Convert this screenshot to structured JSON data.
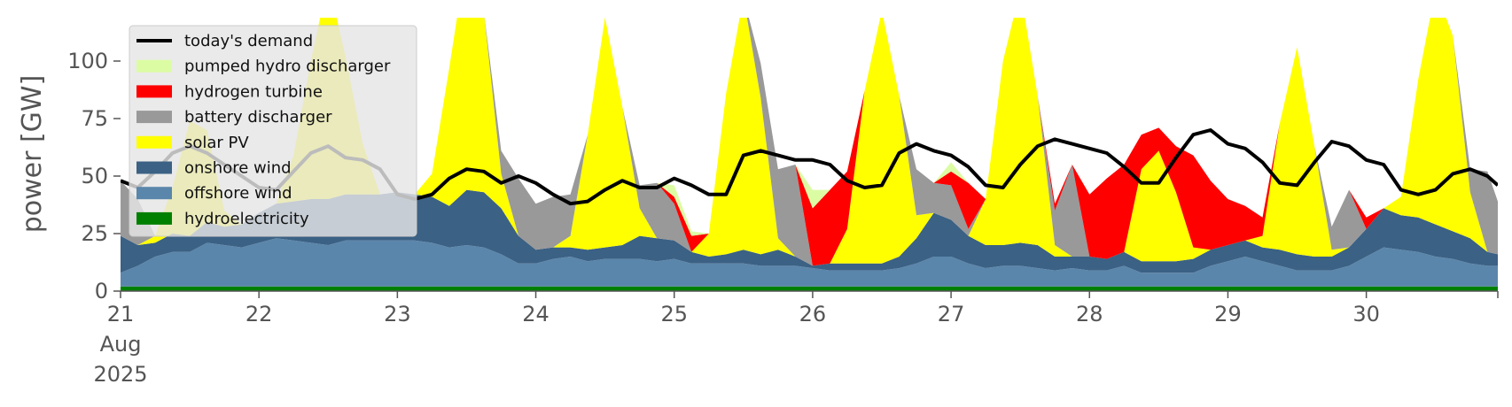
{
  "chart_data": {
    "type": "area",
    "title": "",
    "ylabel": "power [GW]",
    "xlabel": "",
    "ylim": [
      0,
      120
    ],
    "xlim_days": [
      21,
      30.95
    ],
    "yticks": [
      0,
      25,
      50,
      75,
      100
    ],
    "xticks": [
      {
        "day": 21,
        "lines": [
          "21",
          "Aug",
          "2025"
        ]
      },
      {
        "day": 22,
        "lines": [
          "22"
        ]
      },
      {
        "day": 23,
        "lines": [
          "23"
        ]
      },
      {
        "day": 24,
        "lines": [
          "24"
        ]
      },
      {
        "day": 25,
        "lines": [
          "25"
        ]
      },
      {
        "day": 26,
        "lines": [
          "26"
        ]
      },
      {
        "day": 27,
        "lines": [
          "27"
        ]
      },
      {
        "day": 28,
        "lines": [
          "28"
        ]
      },
      {
        "day": 29,
        "lines": [
          "29"
        ]
      },
      {
        "day": 30,
        "lines": [
          "30"
        ]
      }
    ],
    "legend_position": "top-left",
    "grid": false,
    "x": [
      21.0,
      21.125,
      21.25,
      21.375,
      21.5,
      21.625,
      21.75,
      21.875,
      22.0,
      22.125,
      22.25,
      22.375,
      22.5,
      22.625,
      22.75,
      22.875,
      23.0,
      23.125,
      23.25,
      23.375,
      23.5,
      23.625,
      23.75,
      23.875,
      24.0,
      24.125,
      24.25,
      24.375,
      24.5,
      24.625,
      24.75,
      24.875,
      25.0,
      25.125,
      25.25,
      25.375,
      25.5,
      25.625,
      25.75,
      25.875,
      26.0,
      26.125,
      26.25,
      26.375,
      26.5,
      26.625,
      26.75,
      26.875,
      27.0,
      27.125,
      27.25,
      27.375,
      27.5,
      27.625,
      27.75,
      27.875,
      28.0,
      28.125,
      28.25,
      28.375,
      28.5,
      28.625,
      28.75,
      28.875,
      29.0,
      29.125,
      29.25,
      29.375,
      29.5,
      29.625,
      29.75,
      29.875,
      30.0,
      30.125,
      30.25,
      30.375,
      30.5,
      30.625,
      30.75,
      30.875,
      30.95
    ],
    "series": [
      {
        "name": "hydroelectricity",
        "color": "#008000",
        "values": [
          2,
          2,
          2,
          2,
          2,
          2,
          2,
          2,
          2,
          2,
          2,
          2,
          2,
          2,
          2,
          2,
          2,
          2,
          2,
          2,
          2,
          2,
          2,
          2,
          2,
          2,
          2,
          2,
          2,
          2,
          2,
          2,
          2,
          2,
          2,
          2,
          2,
          2,
          2,
          2,
          2,
          2,
          2,
          2,
          2,
          2,
          2,
          2,
          2,
          2,
          2,
          2,
          2,
          2,
          2,
          2,
          2,
          2,
          2,
          2,
          2,
          2,
          2,
          2,
          2,
          2,
          2,
          2,
          2,
          2,
          2,
          2,
          2,
          2,
          2,
          2,
          2,
          2,
          2,
          2,
          2
        ]
      },
      {
        "name": "offshore wind",
        "color": "#5b86ab",
        "values": [
          6,
          9,
          13,
          15,
          15,
          19,
          18,
          17,
          19,
          21,
          20,
          19,
          18,
          20,
          20,
          20,
          20,
          20,
          19,
          17,
          18,
          17,
          14,
          10,
          10,
          12,
          13,
          11,
          12,
          12,
          12,
          11,
          12,
          10,
          10,
          10,
          10,
          9,
          9,
          9,
          8,
          7,
          7,
          7,
          7,
          8,
          10,
          13,
          13,
          10,
          8,
          9,
          9,
          8,
          7,
          8,
          7,
          7,
          9,
          6,
          6,
          6,
          6,
          9,
          11,
          13,
          11,
          9,
          7,
          7,
          7,
          9,
          13,
          17,
          16,
          15,
          13,
          12,
          10,
          9,
          9
        ]
      },
      {
        "name": "onshore wind",
        "color": "#3b6184",
        "values": [
          16,
          9,
          6,
          8,
          7,
          9,
          8,
          10,
          13,
          15,
          17,
          19,
          20,
          20,
          20,
          20,
          21,
          20,
          20,
          18,
          24,
          24,
          20,
          12,
          6,
          5,
          4,
          5,
          5,
          6,
          10,
          10,
          8,
          5,
          3,
          4,
          6,
          5,
          7,
          4,
          1,
          3,
          3,
          3,
          3,
          5,
          11,
          19,
          16,
          12,
          10,
          9,
          10,
          10,
          6,
          5,
          6,
          5,
          6,
          5,
          5,
          5,
          6,
          7,
          7,
          7,
          6,
          7,
          7,
          6,
          6,
          8,
          12,
          17,
          15,
          15,
          14,
          12,
          11,
          6,
          5
        ]
      },
      {
        "name": "solar PV",
        "color": "#ffff00",
        "values": [
          0,
          0,
          3,
          20,
          50,
          40,
          7,
          0,
          0,
          0,
          20,
          60,
          95,
          60,
          22,
          0,
          0,
          0,
          10,
          60,
          102,
          78,
          15,
          0,
          0,
          0,
          5,
          50,
          100,
          60,
          12,
          0,
          0,
          0,
          10,
          70,
          110,
          68,
          5,
          0,
          0,
          0,
          15,
          75,
          110,
          70,
          10,
          0,
          0,
          0,
          20,
          80,
          110,
          65,
          5,
          0,
          0,
          0,
          0,
          40,
          48,
          30,
          5,
          0,
          0,
          0,
          5,
          55,
          90,
          48,
          3,
          0,
          0,
          0,
          8,
          60,
          102,
          85,
          20,
          0,
          0
        ]
      },
      {
        "name": "battery discharger",
        "color": "#999999",
        "values": [
          24,
          20,
          0,
          0,
          0,
          0,
          0,
          0,
          0,
          0,
          0,
          0,
          0,
          0,
          0,
          0,
          0,
          0,
          0,
          0,
          0,
          0,
          10,
          25,
          20,
          22,
          18,
          0,
          0,
          0,
          10,
          24,
          16,
          0,
          0,
          0,
          0,
          15,
          30,
          40,
          0,
          0,
          0,
          0,
          0,
          0,
          20,
          13,
          15,
          3,
          0,
          0,
          0,
          0,
          15,
          40,
          0,
          0,
          0,
          0,
          0,
          0,
          0,
          0,
          0,
          0,
          0,
          0,
          0,
          0,
          10,
          25,
          0,
          0,
          0,
          0,
          0,
          0,
          10,
          35,
          23
        ]
      },
      {
        "name": "hydrogen turbine",
        "color": "#ff0000",
        "values": [
          0,
          0,
          0,
          0,
          0,
          0,
          0,
          0,
          0,
          0,
          0,
          0,
          0,
          0,
          0,
          0,
          0,
          0,
          0,
          0,
          0,
          0,
          0,
          0,
          0,
          0,
          0,
          0,
          0,
          0,
          0,
          0,
          3,
          7,
          0,
          0,
          0,
          0,
          0,
          0,
          25,
          32,
          25,
          0,
          0,
          0,
          0,
          0,
          6,
          20,
          0,
          0,
          0,
          0,
          3,
          0,
          27,
          35,
          38,
          15,
          10,
          20,
          40,
          30,
          20,
          15,
          8,
          0,
          0,
          0,
          0,
          0,
          5,
          0,
          0,
          0,
          0,
          0,
          0,
          0,
          0
        ]
      },
      {
        "name": "pumped hydro discharger",
        "color": "#dcfca4",
        "values": [
          0,
          0,
          0,
          0,
          0,
          0,
          0,
          0,
          0,
          0,
          0,
          0,
          0,
          0,
          0,
          0,
          0,
          0,
          0,
          0,
          0,
          0,
          0,
          0,
          0,
          0,
          0,
          0,
          0,
          0,
          0,
          0,
          5,
          2,
          0,
          0,
          0,
          0,
          0,
          0,
          8,
          0,
          0,
          0,
          0,
          0,
          0,
          0,
          4,
          0,
          0,
          0,
          0,
          0,
          0,
          0,
          0,
          0,
          0,
          0,
          0,
          0,
          0,
          0,
          0,
          0,
          0,
          0,
          0,
          0,
          0,
          0,
          0,
          0,
          0,
          0,
          0,
          0,
          0,
          0,
          0
        ]
      },
      {
        "name": "today's demand",
        "color": "#000000",
        "kind": "line",
        "values": [
          48,
          45,
          52,
          60,
          63,
          60,
          55,
          50,
          45,
          44,
          52,
          60,
          63,
          58,
          57,
          53,
          42,
          40,
          42,
          49,
          53,
          52,
          47,
          50,
          47,
          42,
          38,
          39,
          44,
          48,
          45,
          45,
          49,
          46,
          42,
          42,
          59,
          61,
          59,
          57,
          57,
          55,
          48,
          45,
          46,
          60,
          64,
          61,
          59,
          54,
          46,
          45,
          55,
          63,
          66,
          64,
          62,
          60,
          54,
          47,
          47,
          58,
          68,
          70,
          64,
          62,
          56,
          47,
          46,
          56,
          65,
          63,
          57,
          55,
          44,
          42,
          44,
          51,
          53,
          50,
          46
        ]
      }
    ],
    "legend": [
      "today's demand",
      "pumped hydro discharger",
      "hydrogen turbine",
      "battery discharger",
      "solar PV",
      "onshore wind",
      "offshore wind",
      "hydroelectricity"
    ]
  }
}
